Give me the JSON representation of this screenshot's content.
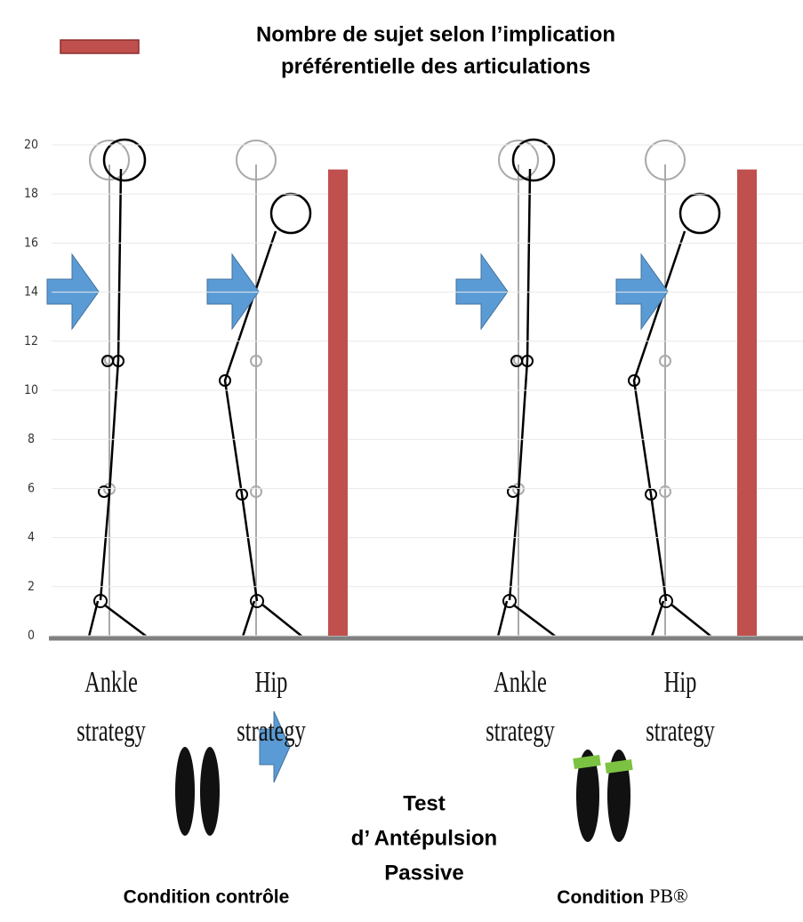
{
  "chart_data": {
    "type": "bar",
    "title_lines": [
      "Nombre de sujet selon l’implication",
      "préférentielle des articulations"
    ],
    "legend_color": "#c0504d",
    "color": "#c0504d",
    "ylim": [
      0,
      22
    ],
    "yticks": [
      0,
      2,
      4,
      6,
      8,
      10,
      12,
      14,
      16,
      18,
      20
    ],
    "grid": true,
    "groups": [
      {
        "categories": [
          "Ankle strategy",
          "Hip strategy"
        ],
        "values": [
          0,
          19
        ],
        "condition": "Condition contrôle"
      },
      {
        "categories": [
          "Ankle strategy",
          "Hip strategy"
        ],
        "values": [
          0,
          19
        ],
        "condition": "Condition",
        "condition_mark": "PB®"
      }
    ],
    "test_lines": [
      "Test",
      "d’ Antépulsion",
      "Passive"
    ]
  }
}
